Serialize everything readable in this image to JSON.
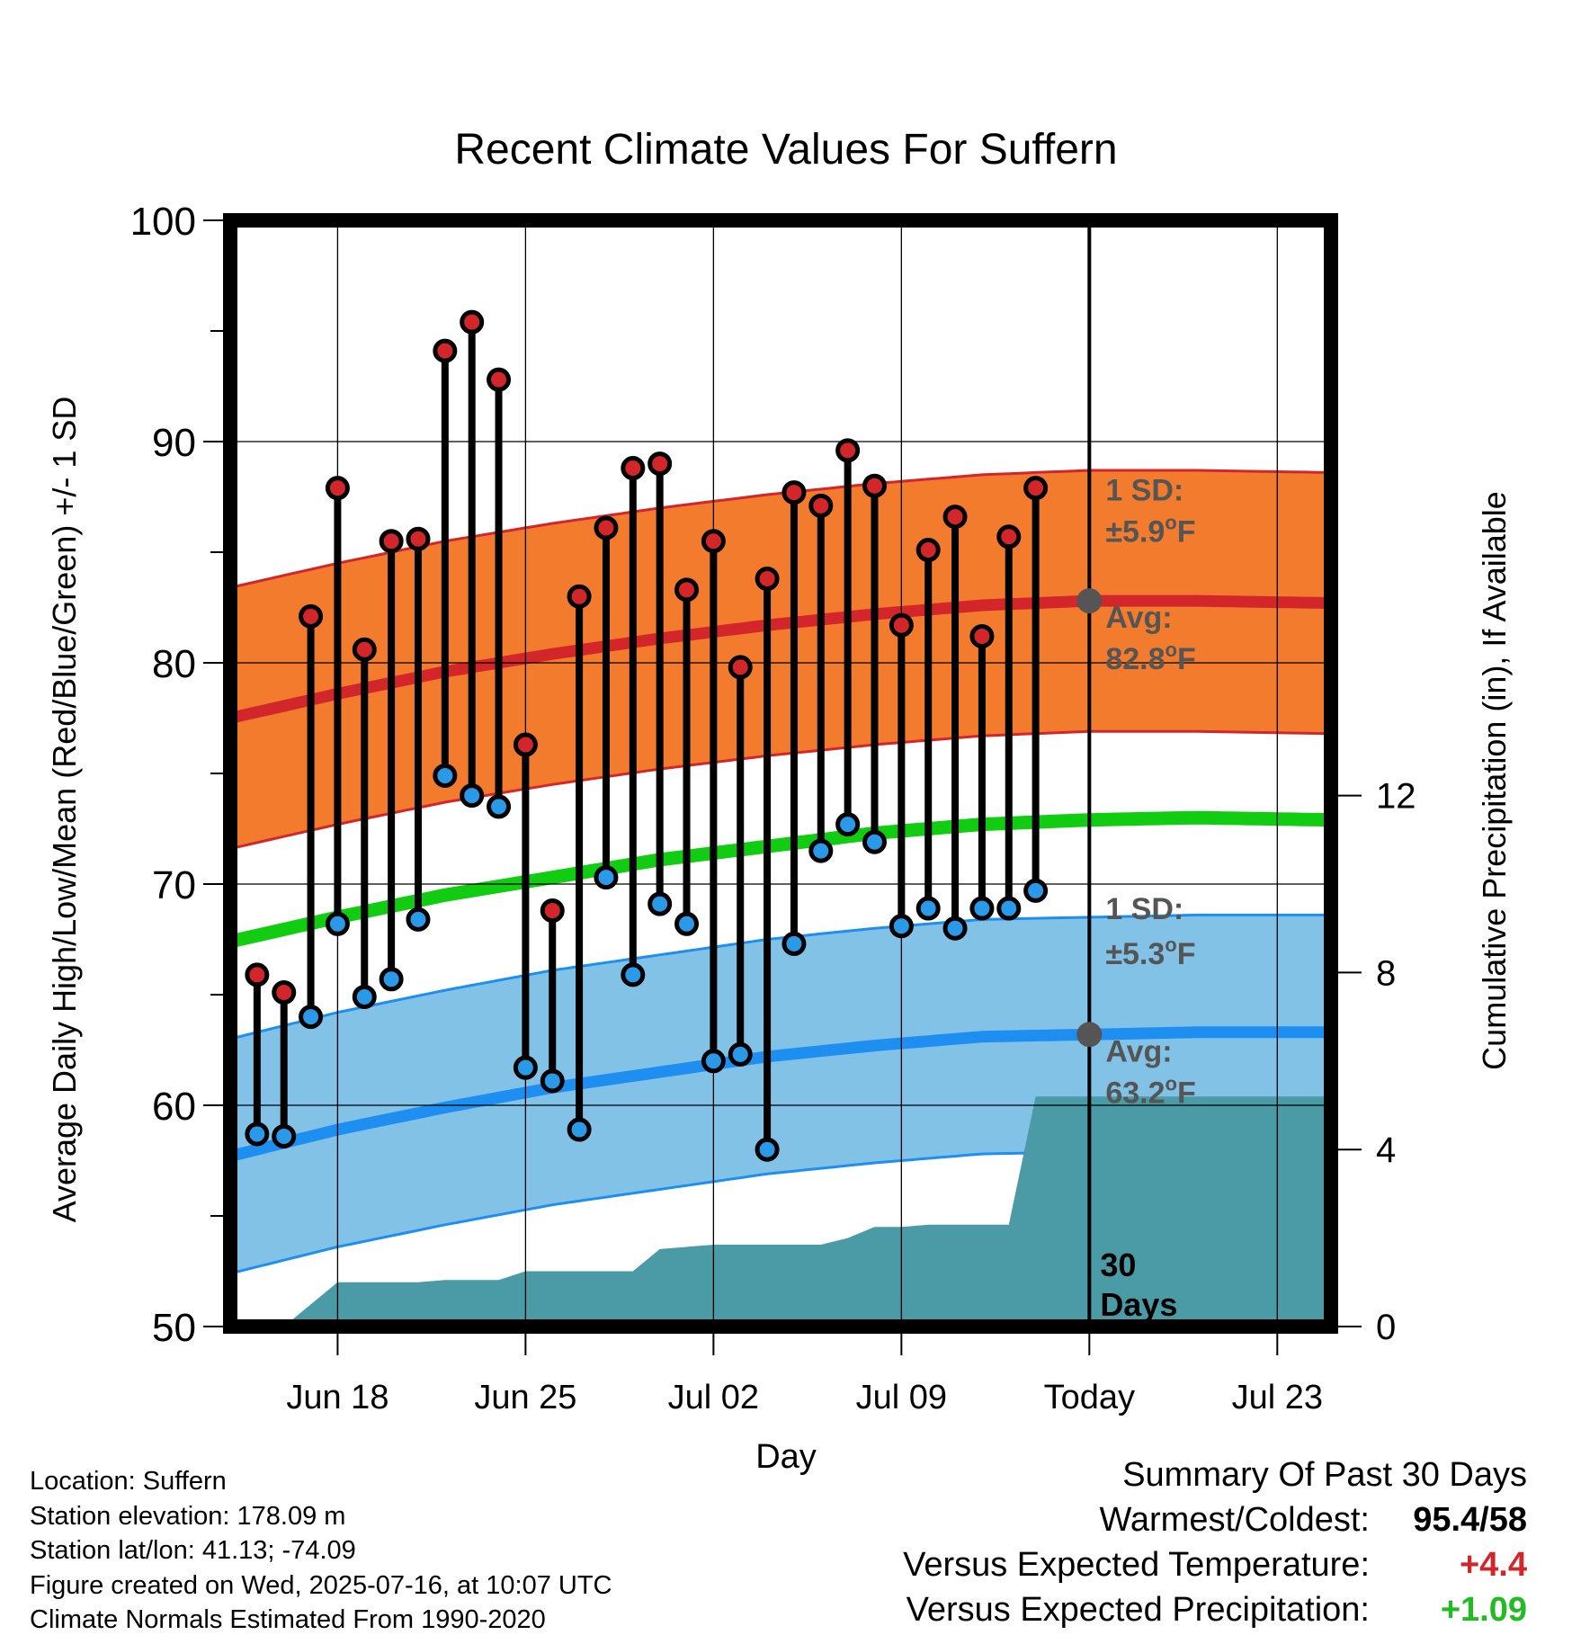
{
  "chart_data": {
    "type": "line",
    "title": "Recent Climate Values For Suffern",
    "xlabel": "Day",
    "ylabel": "Average Daily High/Low/Mean (Red/Blue/Green) +/- 1 SD",
    "y2label": "Cumulative Precipitation (in), If Available",
    "x_range": [
      "2025-06-14",
      "2025-07-25"
    ],
    "ylim": [
      50,
      100
    ],
    "y2lim": [
      0,
      25
    ],
    "y_ticks": [
      "100",
      "90",
      "80",
      "70",
      "60",
      "50"
    ],
    "y2_ticks": [
      "12",
      "8",
      "4",
      "0"
    ],
    "x_ticks": [
      {
        "date": "2025-06-18",
        "label": "Jun 18"
      },
      {
        "date": "2025-06-25",
        "label": "Jun 25"
      },
      {
        "date": "2025-07-02",
        "label": "Jul 02"
      },
      {
        "date": "2025-07-09",
        "label": "Jul 09"
      },
      {
        "date": "2025-07-16",
        "label": "Today"
      },
      {
        "date": "2025-07-23",
        "label": "Jul 23"
      }
    ],
    "today": "2025-07-16",
    "window_label": [
      "30",
      "Days"
    ],
    "daily": {
      "dates": [
        "2025-06-15",
        "2025-06-16",
        "2025-06-17",
        "2025-06-18",
        "2025-06-19",
        "2025-06-20",
        "2025-06-21",
        "2025-06-22",
        "2025-06-23",
        "2025-06-24",
        "2025-06-25",
        "2025-06-26",
        "2025-06-27",
        "2025-06-28",
        "2025-06-29",
        "2025-06-30",
        "2025-07-01",
        "2025-07-02",
        "2025-07-03",
        "2025-07-04",
        "2025-07-05",
        "2025-07-06",
        "2025-07-07",
        "2025-07-08",
        "2025-07-09",
        "2025-07-10",
        "2025-07-11",
        "2025-07-12",
        "2025-07-13",
        "2025-07-14",
        "2025-07-15"
      ],
      "highs": [
        65.9,
        65.1,
        82.1,
        87.9,
        80.6,
        85.5,
        85.6,
        94.1,
        95.4,
        92.8,
        76.3,
        68.8,
        83.0,
        86.1,
        88.8,
        89.0,
        83.3,
        85.5,
        79.8,
        83.8,
        87.7,
        87.1,
        89.6,
        88.0,
        81.7,
        85.1,
        86.6,
        81.2,
        85.7,
        87.9,
        null
      ],
      "lows": [
        58.7,
        58.6,
        64.0,
        68.2,
        64.9,
        65.7,
        68.4,
        74.9,
        74.0,
        73.5,
        61.7,
        61.1,
        58.9,
        70.3,
        65.9,
        69.1,
        68.2,
        62.0,
        62.3,
        58.0,
        67.3,
        71.5,
        72.7,
        71.9,
        68.1,
        68.9,
        68.0,
        68.9,
        68.9,
        69.7,
        null
      ]
    },
    "normals": {
      "dates": [
        "2025-06-14",
        "2025-06-18",
        "2025-06-22",
        "2025-06-26",
        "2025-06-30",
        "2025-07-04",
        "2025-07-08",
        "2025-07-12",
        "2025-07-16",
        "2025-07-20",
        "2025-07-25"
      ],
      "high_avg": [
        77.5,
        78.6,
        79.6,
        80.4,
        81.1,
        81.7,
        82.2,
        82.6,
        82.8,
        82.8,
        82.7
      ],
      "mean_avg": [
        67.4,
        68.5,
        69.5,
        70.3,
        71.1,
        71.7,
        72.3,
        72.7,
        72.9,
        73.0,
        72.9
      ],
      "low_avg": [
        57.7,
        58.9,
        59.9,
        60.8,
        61.5,
        62.2,
        62.7,
        63.1,
        63.2,
        63.3,
        63.3
      ],
      "high_sd": 5.9,
      "low_sd": 5.3
    },
    "precip": {
      "dates": [
        "2025-06-16",
        "2025-06-17",
        "2025-06-18",
        "2025-06-20",
        "2025-06-21",
        "2025-06-22",
        "2025-06-23",
        "2025-06-24",
        "2025-06-25",
        "2025-06-29",
        "2025-06-30",
        "2025-07-01",
        "2025-07-02",
        "2025-07-05",
        "2025-07-06",
        "2025-07-07",
        "2025-07-08",
        "2025-07-09",
        "2025-07-10",
        "2025-07-11",
        "2025-07-12",
        "2025-07-13",
        "2025-07-14",
        "2025-07-25"
      ],
      "cumulative": [
        0.0,
        0.5,
        1.0,
        1.0,
        1.0,
        1.05,
        1.05,
        1.05,
        1.25,
        1.25,
        1.75,
        1.8,
        1.85,
        1.85,
        1.85,
        2.0,
        2.25,
        2.25,
        2.3,
        2.3,
        2.3,
        2.3,
        5.2,
        5.2
      ]
    },
    "annotations": [
      {
        "text_top": "1 SD:",
        "text_bottom": "±5.9°F",
        "anchor_y": 86.6
      },
      {
        "text_top": "Avg:",
        "text_bottom": "82.8°F",
        "anchor_y": 82.8
      },
      {
        "text_top": "1 SD:",
        "text_bottom": "±5.3°F",
        "anchor_y": 67.6
      },
      {
        "text_top": "Avg:",
        "text_bottom": "63.2°F",
        "anchor_y": 63.2
      }
    ],
    "colors": {
      "high_band": "#f37b2d",
      "high_band_edge": "#d2262a",
      "high_avg": "#d2262a",
      "mean_avg": "#11cc11",
      "low_band": "#82c2e6",
      "low_band_edge": "#1e8ff0",
      "low_avg": "#1e8ff0",
      "precip": "#4a9ba6",
      "high_dot": "#d2262a",
      "low_dot": "#2a9ae8",
      "today_dot": "#555555",
      "annotation_text": "#555555"
    }
  },
  "info": {
    "location": "Location: Suffern",
    "elevation": "Station elevation: 178.09 m",
    "latlon": "Station lat/lon: 41.13; -74.09",
    "created": "Figure created on Wed, 2025-07-16, at 10:07 UTC",
    "normals": "Climate Normals Estimated From 1990-2020"
  },
  "summary": {
    "title": "Summary Of Past 30 Days",
    "warmest_label": "Warmest/Coldest:",
    "warmest_value": "95.4/58",
    "temp_label": "Versus Expected Temperature:",
    "temp_value": "+4.4",
    "temp_color": "#d2262a",
    "precip_label": "Versus Expected Precipitation:",
    "precip_value": "+1.09",
    "precip_color": "#22bb22"
  }
}
